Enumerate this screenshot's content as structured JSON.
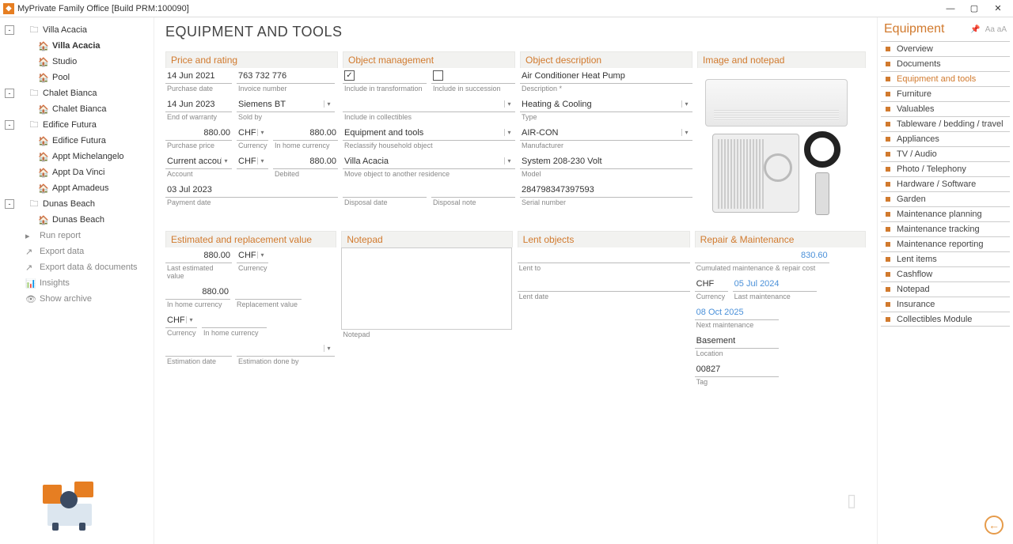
{
  "titlebar": {
    "app_title": "MyPrivate Family Office [Build PRM:100090]"
  },
  "tree": [
    {
      "type": "folder",
      "label": "Villa Acacia",
      "expand": "-",
      "children": [
        {
          "type": "home",
          "label": "Villa Acacia",
          "bold": true
        },
        {
          "type": "home",
          "label": "Studio"
        },
        {
          "type": "home",
          "label": "Pool"
        }
      ]
    },
    {
      "type": "folder",
      "label": "Chalet Bianca",
      "expand": "-",
      "children": [
        {
          "type": "home",
          "label": "Chalet Bianca"
        }
      ]
    },
    {
      "type": "folder",
      "label": "Edifice Futura",
      "expand": "-",
      "children": [
        {
          "type": "home",
          "label": "Edifice Futura"
        },
        {
          "type": "home",
          "label": "Appt Michelangelo"
        },
        {
          "type": "home",
          "label": "Appt Da Vinci"
        },
        {
          "type": "home",
          "label": "Appt Amadeus"
        }
      ]
    },
    {
      "type": "folder",
      "label": "Dunas Beach",
      "expand": "-",
      "children": [
        {
          "type": "home",
          "label": "Dunas Beach"
        }
      ]
    }
  ],
  "actions": [
    {
      "icon": "▸",
      "label": "Run report"
    },
    {
      "icon": "↗",
      "label": "Export data"
    },
    {
      "icon": "↗",
      "label": "Export data & documents"
    },
    {
      "icon": "📊",
      "label": "Insights"
    },
    {
      "icon": "👁",
      "label": "Show archive"
    }
  ],
  "page": {
    "title": "EQUIPMENT AND TOOLS"
  },
  "price_rating": {
    "header": "Price and rating",
    "purchase_date": "14 Jun 2021",
    "purchase_date_l": "Purchase date",
    "invoice_number": "763 732 776",
    "invoice_number_l": "Invoice number",
    "end_warranty": "14 Jun 2023",
    "end_warranty_l": "End of warranty",
    "sold_by": "Siemens BT",
    "sold_by_l": "Sold by",
    "purchase_price": "880.00",
    "purchase_price_l": "Purchase price",
    "currency": "CHF",
    "currency_l": "Currency",
    "home_cur": "880.00",
    "home_cur_l": "In home currency",
    "account": "Current account [C",
    "account_l": "Account",
    "debited_cur": "CHF",
    "debited_v": "880.00",
    "debited_l": "Debited",
    "payment_date": "03 Jul 2023",
    "payment_date_l": "Payment date"
  },
  "obj_mgmt": {
    "header": "Object management",
    "inc_trans_l": "Include in transformation",
    "inc_succ_l": "Include in succession",
    "inc_coll_l": "Include in collectibles",
    "reclass": "Equipment and tools",
    "reclass_l": "Reclassify household object",
    "move": "Villa Acacia",
    "move_l": "Move object to another residence",
    "disposal_date_l": "Disposal date",
    "disposal_note_l": "Disposal note"
  },
  "obj_desc": {
    "header": "Object description",
    "description": "Air Conditioner Heat Pump",
    "description_l": "Description *",
    "typeval": "Heating & Cooling",
    "type_l": "Type",
    "manufacturer": "AIR-CON",
    "manufacturer_l": "Manufacturer",
    "model": "System 208-230 Volt",
    "model_l": "Model",
    "serial": "284798347397593",
    "serial_l": "Serial number"
  },
  "image_np": {
    "header": "Image and notepad"
  },
  "est_repl": {
    "header": "Estimated and replacement value",
    "last_est": "880.00",
    "last_est_l": "Last estimated value",
    "cur": "CHF",
    "cur_l": "Currency",
    "home": "880.00",
    "home_l": "In home currency",
    "repl_l": "Replacement value",
    "cur2": "CHF",
    "cur2_l": "Currency",
    "home2_l": "In home currency",
    "est_date_l": "Estimation date",
    "est_by_l": "Estimation done by"
  },
  "notepad_sec": {
    "header": "Notepad",
    "l": "Notepad"
  },
  "lent": {
    "header": "Lent objects",
    "to_l": "Lent to",
    "date_l": "Lent date"
  },
  "repair": {
    "header": "Repair & Maintenance",
    "cost": "830.60",
    "cost_cur": "CHF",
    "cost_l": "Cumulated maintenance & repair cost",
    "cur_l": "Currency",
    "last": "05 Jul 2024",
    "last_l": "Last maintenance",
    "next": "08 Oct 2025",
    "next_l": "Next maintenance",
    "loc": "Basement",
    "loc_l": "Location",
    "tag": "00827",
    "tag_l": "Tag"
  },
  "rightnav": {
    "title": "Equipment",
    "items": [
      "Overview",
      "Documents",
      "Equipment and tools",
      "Furniture",
      "Valuables",
      "Tableware / bedding / travel",
      "Appliances",
      "TV / Audio",
      "Photo / Telephony",
      "Hardware / Software",
      "Garden",
      "Maintenance planning",
      "Maintenance tracking",
      "Maintenance reporting",
      "Lent items",
      "Cashflow",
      "Notepad",
      "Insurance",
      "Collectibles Module"
    ],
    "active_index": 2
  }
}
